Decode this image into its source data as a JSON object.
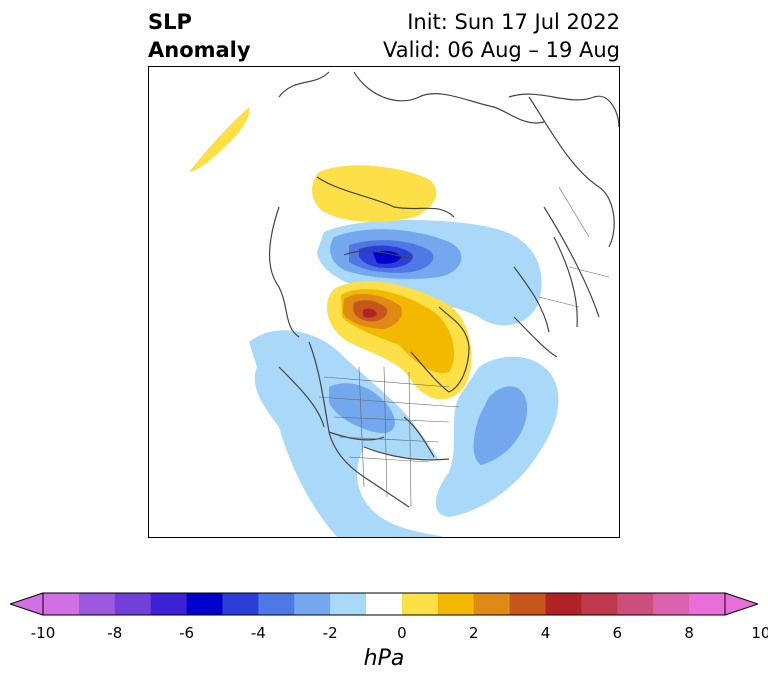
{
  "title": {
    "left_line1": "SLP",
    "left_line2": "Anomaly",
    "right_line1": "Init: Sun 17 Jul 2022",
    "right_line2": "Valid: 06 Aug – 19 Aug"
  },
  "colorbar": {
    "unit": "hPa",
    "ticks": [
      "-10",
      "-8",
      "-6",
      "-4",
      "-2",
      "0",
      "2",
      "4",
      "6",
      "8",
      "10"
    ],
    "levels": [
      -10,
      -9,
      -8,
      -7,
      -6,
      -5,
      -4,
      -3,
      -2,
      -1,
      1,
      2,
      3,
      4,
      5,
      6,
      7,
      8,
      9,
      10
    ],
    "colors": [
      "#d271e6",
      "#9d59e0",
      "#7040d8",
      "#3c22d4",
      "#0000cc",
      "#2a3fd8",
      "#4f78e4",
      "#73a8ee",
      "#a9d8f8",
      "#ffffff",
      "#fde047",
      "#f3b800",
      "#de8a14",
      "#c6561c",
      "#b02226",
      "#c0384c",
      "#cd4e7a",
      "#db63ad",
      "#e86fd9"
    ],
    "extend_low_color": "#d271e6",
    "extend_high_color": "#e86fd9"
  }
}
